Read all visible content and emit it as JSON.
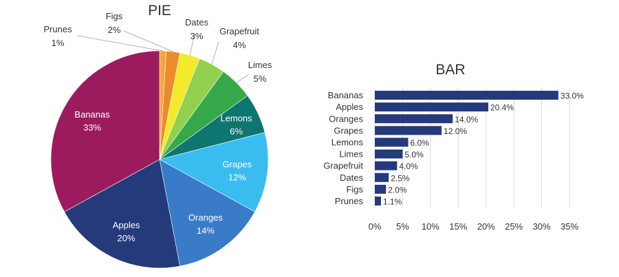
{
  "chart_data": [
    {
      "type": "pie",
      "title": "PIE",
      "categories": [
        "Bananas",
        "Apples",
        "Oranges",
        "Grapes",
        "Lemons",
        "Limes",
        "Grapefruit",
        "Dates",
        "Figs",
        "Prunes"
      ],
      "values": [
        33,
        20,
        14,
        12,
        6,
        5,
        4,
        3,
        2,
        1
      ],
      "labels": [
        "33%",
        "20%",
        "14%",
        "12%",
        "6%",
        "5%",
        "4%",
        "3%",
        "2%",
        "1%"
      ],
      "colors": [
        "#9c1b5e",
        "#253a7b",
        "#3a7bc8",
        "#39bdf1",
        "#0e7570",
        "#35a94a",
        "#92d050",
        "#f2ea2a",
        "#ec8a2c",
        "#f4a83a"
      ],
      "start_direction": "top, clockwise from Prunes"
    },
    {
      "type": "bar",
      "orientation": "horizontal",
      "title": "BAR",
      "categories": [
        "Bananas",
        "Apples",
        "Oranges",
        "Grapes",
        "Lemons",
        "Limes",
        "Grapefruit",
        "Dates",
        "Figs",
        "Prunes"
      ],
      "values": [
        33.0,
        20.4,
        14.0,
        12.0,
        6.0,
        5.0,
        4.0,
        2.5,
        2.0,
        1.1
      ],
      "value_labels": [
        "33.0%",
        "20.4%",
        "14.0%",
        "12.0%",
        "6.0%",
        "5.0%",
        "4.0%",
        "2.5%",
        "2.0%",
        "1.1%"
      ],
      "xlim": [
        0,
        35
      ],
      "xticks": [
        "0%",
        "5%",
        "10%",
        "15%",
        "20%",
        "25%",
        "30%",
        "35%"
      ],
      "grid": true,
      "bar_color": "#253a7b"
    }
  ]
}
